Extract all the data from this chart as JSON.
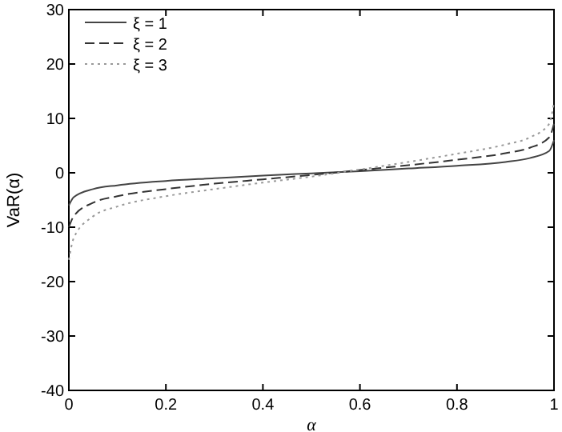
{
  "chart_data": {
    "type": "line",
    "xlabel": "α",
    "ylabel": "VaR(α)",
    "xlim": [
      0,
      1
    ],
    "ylim": [
      -40,
      30
    ],
    "xticks": [
      0,
      0.2,
      0.4,
      0.6,
      0.8,
      1
    ],
    "yticks": [
      -40,
      -30,
      -20,
      -10,
      0,
      10,
      20,
      30
    ],
    "legend": "top left",
    "grid": false,
    "x": [
      0,
      0.01,
      0.05,
      0.1,
      0.2,
      0.3,
      0.4,
      0.5,
      0.6,
      0.7,
      0.8,
      0.9,
      0.95,
      0.99,
      1
    ],
    "series": [
      {
        "name": "ξ = 1",
        "color": "#444444",
        "line_style": "solid",
        "values": [
          -6,
          -4.5,
          -3,
          -2.3,
          -1.5,
          -1,
          -0.5,
          -0.1,
          0.3,
          0.8,
          1.3,
          2,
          2.7,
          4,
          6
        ]
      },
      {
        "name": "ξ = 2",
        "color": "#333333",
        "line_style": "dashed",
        "values": [
          -10,
          -8,
          -5.5,
          -4.3,
          -3,
          -2,
          -1.2,
          -0.4,
          0.5,
          1.4,
          2.4,
          3.6,
          4.6,
          6.5,
          9
        ]
      },
      {
        "name": "ξ = 3",
        "color": "#999999",
        "line_style": "dotted",
        "values": [
          -16,
          -12,
          -8,
          -6.2,
          -4.3,
          -3,
          -1.8,
          -0.7,
          0.6,
          2,
          3.5,
          5.2,
          6.5,
          9,
          13
        ]
      }
    ]
  }
}
